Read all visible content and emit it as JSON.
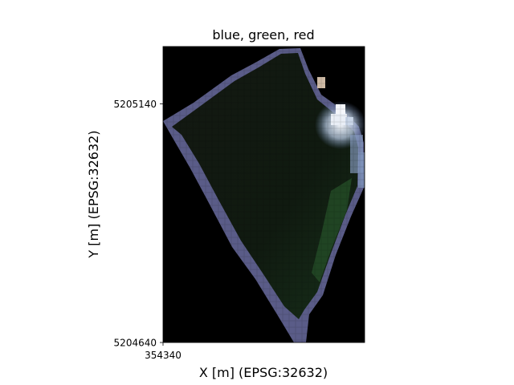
{
  "chart_data": {
    "type": "heatmap",
    "title": "blue, green, red",
    "xlabel": "X [m] (EPSG:32632)",
    "ylabel": "Y [m] (EPSG:32632)",
    "x_ticks": [
      "354340"
    ],
    "y_ticks": [
      "5205140",
      "5204640"
    ],
    "xlim": [
      354340,
      354760
    ],
    "ylim": [
      5204640,
      5205260
    ],
    "bands": [
      "blue",
      "green",
      "red"
    ],
    "background_color": "#000000",
    "field_color": "#11170f",
    "edge_color": "#5c5e8a",
    "highlight_color": "#e8ecf2",
    "grid": false,
    "legend": "none"
  }
}
